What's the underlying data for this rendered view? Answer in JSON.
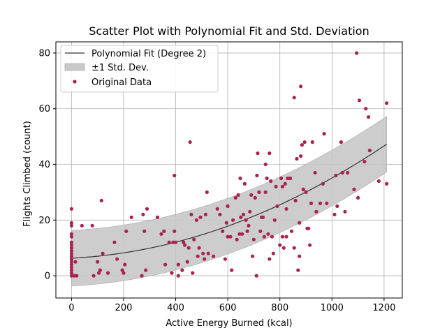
{
  "chart_data": {
    "type": "scatter",
    "title": "Scatter Plot with Polynomial Fit and Std. Deviation",
    "xlabel": "Active Energy Burned (kcal)",
    "ylabel": "Flights Climbed (count)",
    "xlim": [
      -60,
      1270
    ],
    "ylim": [
      -8,
      84
    ],
    "xticks": [
      0,
      200,
      400,
      600,
      800,
      1000,
      1200
    ],
    "yticks": [
      0,
      20,
      40,
      60,
      80
    ],
    "grid": true,
    "legend_position": "top-left",
    "colors": {
      "points": "#a8234f",
      "fit_line": "#333333",
      "band": "#c8c8c8"
    },
    "legend": {
      "fit": "Polynomial Fit (Degree 2)",
      "band": "±1 Std. Dev.",
      "points": "Original Data"
    },
    "fit": {
      "degree": 2,
      "coefficients": [
        6.3,
        0.0048,
        2.4e-05
      ],
      "std_dev": 10,
      "x_range": [
        0,
        1210
      ]
    },
    "series": [
      {
        "name": "Original Data",
        "points": [
          [
            0,
            0
          ],
          [
            0,
            1
          ],
          [
            0,
            2
          ],
          [
            0,
            3
          ],
          [
            0,
            4
          ],
          [
            0,
            5
          ],
          [
            0,
            6
          ],
          [
            0,
            7
          ],
          [
            0,
            8
          ],
          [
            0,
            9
          ],
          [
            0,
            10
          ],
          [
            0,
            11
          ],
          [
            0,
            12
          ],
          [
            0,
            14
          ],
          [
            0,
            15
          ],
          [
            0,
            18
          ],
          [
            0,
            19
          ],
          [
            0,
            24
          ],
          [
            10,
            0
          ],
          [
            15,
            5
          ],
          [
            20,
            0
          ],
          [
            40,
            18
          ],
          [
            80,
            18
          ],
          [
            85,
            0
          ],
          [
            100,
            5
          ],
          [
            105,
            1
          ],
          [
            110,
            2
          ],
          [
            115,
            27
          ],
          [
            120,
            8
          ],
          [
            140,
            1
          ],
          [
            165,
            12
          ],
          [
            175,
            6
          ],
          [
            195,
            2
          ],
          [
            200,
            1
          ],
          [
            205,
            4
          ],
          [
            210,
            16
          ],
          [
            230,
            21
          ],
          [
            270,
            0
          ],
          [
            275,
            22
          ],
          [
            280,
            16
          ],
          [
            285,
            2
          ],
          [
            290,
            24
          ],
          [
            330,
            21
          ],
          [
            345,
            15
          ],
          [
            355,
            16
          ],
          [
            360,
            4
          ],
          [
            375,
            12
          ],
          [
            385,
            1
          ],
          [
            390,
            12
          ],
          [
            395,
            36
          ],
          [
            395,
            16
          ],
          [
            400,
            12
          ],
          [
            410,
            0
          ],
          [
            410,
            4
          ],
          [
            425,
            2
          ],
          [
            430,
            12
          ],
          [
            435,
            11
          ],
          [
            445,
            5
          ],
          [
            450,
            10
          ],
          [
            455,
            48
          ],
          [
            460,
            22
          ],
          [
            465,
            1
          ],
          [
            470,
            13
          ],
          [
            480,
            20
          ],
          [
            485,
            7
          ],
          [
            490,
            10
          ],
          [
            495,
            21
          ],
          [
            505,
            8
          ],
          [
            510,
            6
          ],
          [
            515,
            22
          ],
          [
            520,
            30
          ],
          [
            525,
            8
          ],
          [
            545,
            7
          ],
          [
            560,
            24
          ],
          [
            570,
            22
          ],
          [
            580,
            16
          ],
          [
            590,
            6
          ],
          [
            595,
            19
          ],
          [
            600,
            25
          ],
          [
            600,
            14
          ],
          [
            610,
            14
          ],
          [
            615,
            2
          ],
          [
            620,
            20
          ],
          [
            630,
            28
          ],
          [
            635,
            13
          ],
          [
            640,
            29
          ],
          [
            645,
            15
          ],
          [
            648,
            35
          ],
          [
            650,
            21
          ],
          [
            655,
            15
          ],
          [
            660,
            22
          ],
          [
            665,
            33
          ],
          [
            670,
            20
          ],
          [
            675,
            16
          ],
          [
            680,
            18
          ],
          [
            685,
            23
          ],
          [
            690,
            29
          ],
          [
            695,
            7
          ],
          [
            700,
            13
          ],
          [
            705,
            28
          ],
          [
            710,
            0
          ],
          [
            712,
            36
          ],
          [
            715,
            44
          ],
          [
            720,
            30
          ],
          [
            725,
            16
          ],
          [
            730,
            21
          ],
          [
            735,
            21
          ],
          [
            740,
            14
          ],
          [
            745,
            30
          ],
          [
            745,
            40
          ],
          [
            750,
            35
          ],
          [
            755,
            15
          ],
          [
            760,
            6
          ],
          [
            760,
            44
          ],
          [
            765,
            34
          ],
          [
            770,
            14
          ],
          [
            775,
            8
          ],
          [
            780,
            20
          ],
          [
            785,
            32
          ],
          [
            790,
            25
          ],
          [
            800,
            11
          ],
          [
            805,
            35
          ],
          [
            810,
            14
          ],
          [
            810,
            32
          ],
          [
            815,
            10
          ],
          [
            820,
            33
          ],
          [
            825,
            14
          ],
          [
            825,
            24
          ],
          [
            830,
            35
          ],
          [
            840,
            35
          ],
          [
            845,
            16
          ],
          [
            855,
            10
          ],
          [
            855,
            64
          ],
          [
            860,
            27
          ],
          [
            865,
            42
          ],
          [
            870,
            2
          ],
          [
            875,
            19
          ],
          [
            875,
            7
          ],
          [
            880,
            43
          ],
          [
            880,
            68
          ],
          [
            885,
            47
          ],
          [
            890,
            31
          ],
          [
            895,
            48
          ],
          [
            900,
            30
          ],
          [
            905,
            17
          ],
          [
            910,
            17
          ],
          [
            915,
            11
          ],
          [
            920,
            26
          ],
          [
            925,
            48
          ],
          [
            935,
            37
          ],
          [
            940,
            23
          ],
          [
            955,
            26
          ],
          [
            965,
            33
          ],
          [
            970,
            51
          ],
          [
            980,
            26
          ],
          [
            1010,
            22
          ],
          [
            1015,
            36
          ],
          [
            1020,
            25
          ],
          [
            1035,
            48
          ],
          [
            1040,
            37
          ],
          [
            1050,
            23
          ],
          [
            1060,
            37
          ],
          [
            1085,
            31
          ],
          [
            1095,
            80
          ],
          [
            1100,
            28
          ],
          [
            1105,
            63
          ],
          [
            1125,
            41
          ],
          [
            1130,
            60
          ],
          [
            1140,
            57
          ],
          [
            1145,
            45
          ],
          [
            1180,
            34
          ],
          [
            1210,
            62
          ],
          [
            1210,
            33
          ]
        ]
      }
    ]
  }
}
